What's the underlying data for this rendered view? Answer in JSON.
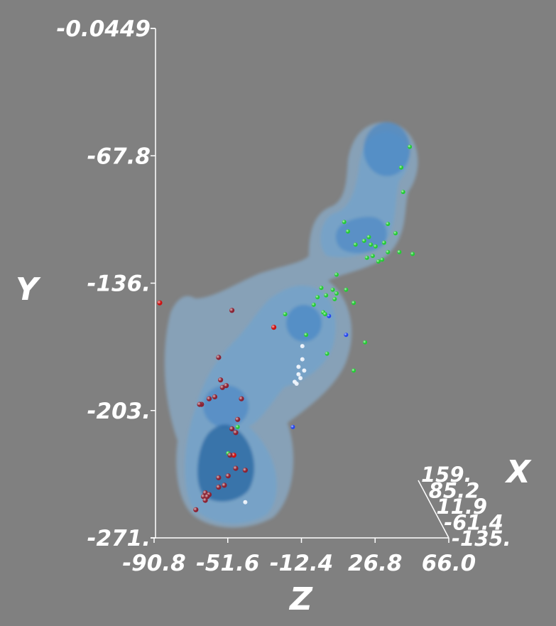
{
  "chart_data": {
    "type": "scatter",
    "render": "3d-isosurface-with-points",
    "title": "",
    "axes": {
      "y": {
        "label": "Y",
        "ticks": [
          "-0.0449",
          "-67.8",
          "-136.",
          "-203.",
          "-271."
        ],
        "range": [
          -271,
          -0.0449
        ]
      },
      "z": {
        "label": "Z",
        "ticks": [
          "-90.8",
          "-51.6",
          "-12.4",
          "26.8",
          "66.0"
        ],
        "range": [
          -90.8,
          66.0
        ]
      },
      "x": {
        "label": "X",
        "ticks": [
          "159.",
          "85.2",
          "11.9",
          "-61.4",
          "-135."
        ],
        "range": [
          -135,
          159
        ]
      }
    },
    "isosurface_colors": [
      "#8cbbe3",
      "#6aa6d8",
      "#3f82c4",
      "#1f5f9e"
    ],
    "point_colors": {
      "green": "#22cc33",
      "red": "#cc1111",
      "darkred": "#8a2233",
      "blue": "#2244ee",
      "white": "#e6eef8"
    },
    "points": [
      {
        "y": -63,
        "z": 45.5,
        "c": "green"
      },
      {
        "y": -74,
        "z": 41,
        "c": "green"
      },
      {
        "y": -87,
        "z": 42,
        "c": "green"
      },
      {
        "y": -103,
        "z": 11,
        "c": "green"
      },
      {
        "y": -104,
        "z": 34,
        "c": "green"
      },
      {
        "y": -108,
        "z": 13,
        "c": "green"
      },
      {
        "y": -109,
        "z": 38,
        "c": "green"
      },
      {
        "y": -111,
        "z": 24,
        "c": "green"
      },
      {
        "y": -113,
        "z": 21.5,
        "c": "green"
      },
      {
        "y": -114,
        "z": 32,
        "c": "green"
      },
      {
        "y": -115,
        "z": 17,
        "c": "green"
      },
      {
        "y": -115,
        "z": 25,
        "c": "green"
      },
      {
        "y": -116,
        "z": 27.5,
        "c": "green"
      },
      {
        "y": -119,
        "z": 34,
        "c": "green"
      },
      {
        "y": -119,
        "z": 40,
        "c": "green"
      },
      {
        "y": -120,
        "z": 47,
        "c": "green"
      },
      {
        "y": -121,
        "z": 26,
        "c": "green"
      },
      {
        "y": -122,
        "z": 23,
        "c": "green"
      },
      {
        "y": -123,
        "z": 31,
        "c": "green"
      },
      {
        "y": -124,
        "z": 29,
        "c": "green"
      },
      {
        "y": -131,
        "z": 7,
        "c": "green"
      },
      {
        "y": -138,
        "z": -1,
        "c": "green"
      },
      {
        "y": -139,
        "z": 12,
        "c": "green"
      },
      {
        "y": -139,
        "z": 5,
        "c": "green"
      },
      {
        "y": -141,
        "z": 7,
        "c": "green"
      },
      {
        "y": -142,
        "z": 1.5,
        "c": "green"
      },
      {
        "y": -143,
        "z": -3,
        "c": "green"
      },
      {
        "y": -144,
        "z": 6,
        "c": "green"
      },
      {
        "y": -147,
        "z": -5,
        "c": "green"
      },
      {
        "y": -146,
        "z": 16,
        "c": "green"
      },
      {
        "y": -151,
        "z": 0,
        "c": "green"
      },
      {
        "y": -152,
        "z": 1,
        "c": "green"
      },
      {
        "y": -152,
        "z": -20,
        "c": "green"
      },
      {
        "y": -153,
        "z": 3,
        "c": "blue"
      },
      {
        "y": -159,
        "z": -26,
        "c": "red"
      },
      {
        "y": -146,
        "z": -86,
        "c": "red"
      },
      {
        "y": -150,
        "z": -48,
        "c": "darkred"
      },
      {
        "y": -163,
        "z": -9,
        "c": "green"
      },
      {
        "y": -163,
        "z": 12,
        "c": "blue"
      },
      {
        "y": -167,
        "z": 22,
        "c": "green"
      },
      {
        "y": -169,
        "z": -11,
        "c": "white"
      },
      {
        "y": -173,
        "z": 2,
        "c": "green"
      },
      {
        "y": -175,
        "z": -55,
        "c": "darkred"
      },
      {
        "y": -176,
        "z": -11,
        "c": "white"
      },
      {
        "y": -180,
        "z": -13,
        "c": "white"
      },
      {
        "y": -182,
        "z": -10,
        "c": "white"
      },
      {
        "y": -182,
        "z": 16,
        "c": "green"
      },
      {
        "y": -184,
        "z": -13,
        "c": "white"
      },
      {
        "y": -186,
        "z": -12,
        "c": "white"
      },
      {
        "y": -188,
        "z": -15,
        "c": "white"
      },
      {
        "y": -189,
        "z": -14,
        "c": "white"
      },
      {
        "y": -187,
        "z": -54,
        "c": "darkred"
      },
      {
        "y": -190,
        "z": -51,
        "c": "darkred"
      },
      {
        "y": -191,
        "z": -53,
        "c": "darkred"
      },
      {
        "y": -196,
        "z": -57,
        "c": "darkred"
      },
      {
        "y": -197,
        "z": -60,
        "c": "darkred"
      },
      {
        "y": -197,
        "z": -43,
        "c": "darkred"
      },
      {
        "y": -200,
        "z": -64,
        "c": "darkred"
      },
      {
        "y": -200,
        "z": -65,
        "c": "darkred"
      },
      {
        "y": -208,
        "z": -45,
        "c": "darkred"
      },
      {
        "y": -212,
        "z": -45,
        "c": "green"
      },
      {
        "y": -212,
        "z": -16,
        "c": "blue"
      },
      {
        "y": -213,
        "z": -48,
        "c": "darkred"
      },
      {
        "y": -215,
        "z": -46,
        "c": "darkred"
      },
      {
        "y": -226,
        "z": -50,
        "c": "green"
      },
      {
        "y": -227,
        "z": -47,
        "c": "red"
      },
      {
        "y": -227,
        "z": -49,
        "c": "darkred"
      },
      {
        "y": -234,
        "z": -46,
        "c": "darkred"
      },
      {
        "y": -235,
        "z": -41,
        "c": "darkred"
      },
      {
        "y": -238,
        "z": -50,
        "c": "darkred"
      },
      {
        "y": -239,
        "z": -55,
        "c": "darkred"
      },
      {
        "y": -243,
        "z": -52,
        "c": "darkred"
      },
      {
        "y": -244,
        "z": -55,
        "c": "darkred"
      },
      {
        "y": -247,
        "z": -62,
        "c": "darkred"
      },
      {
        "y": -248,
        "z": -60,
        "c": "darkred"
      },
      {
        "y": -249,
        "z": -63,
        "c": "darkred"
      },
      {
        "y": -249,
        "z": -61,
        "c": "darkred"
      },
      {
        "y": -251,
        "z": -62,
        "c": "darkred"
      },
      {
        "y": -252,
        "z": -41,
        "c": "white"
      },
      {
        "y": -256,
        "z": -67,
        "c": "darkred"
      }
    ]
  }
}
